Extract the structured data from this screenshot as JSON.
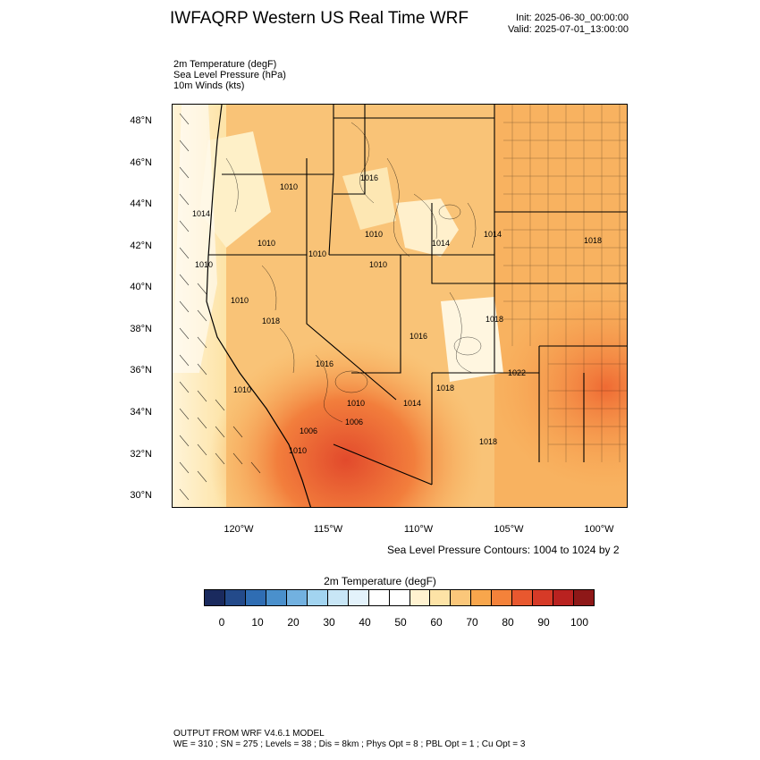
{
  "title": "IWFAQRP Western US Real Time WRF",
  "init": "Init: 2025-06-30_00:00:00",
  "valid": "Valid: 2025-07-01_13:00:00",
  "fields": [
    "2m Temperature   (degF)",
    "Sea Level Pressure   (hPa)",
    "10m Winds   (kts)"
  ],
  "lat_labels": [
    "48°N",
    "46°N",
    "44°N",
    "42°N",
    "40°N",
    "38°N",
    "36°N",
    "34°N",
    "32°N",
    "30°N"
  ],
  "lon_labels": [
    "120°W",
    "115°W",
    "110°W",
    "105°W",
    "100°W"
  ],
  "contour_note": "Sea Level Pressure Contours: 1004 to 1024 by 2",
  "colorbar": {
    "title": "2m Temperature  (degF)",
    "colors": [
      "#1a2a5e",
      "#234a8a",
      "#2f6db3",
      "#4a90cc",
      "#72b1e0",
      "#a2d4f0",
      "#c8e6f6",
      "#e3f2fb",
      "#ffffff",
      "#ffffff",
      "#fff2d0",
      "#fde3a6",
      "#fbc77a",
      "#f8a64c",
      "#f4823a",
      "#e8582f",
      "#d63a27",
      "#b92220",
      "#8e1818"
    ],
    "ticks": [
      "0",
      "10",
      "20",
      "30",
      "40",
      "50",
      "60",
      "70",
      "80",
      "90",
      "100"
    ]
  },
  "pressure_labels": [
    "1010",
    "1016",
    "1014",
    "1010",
    "1010",
    "1010",
    "1010",
    "1014",
    "1014",
    "1018",
    "1010",
    "1010",
    "1018",
    "1018",
    "1022",
    "1010",
    "1010",
    "1014",
    "1016",
    "1018",
    "1006",
    "1010",
    "1018",
    "1016",
    "1006"
  ],
  "footer": [
    "OUTPUT FROM WRF V4.6.1 MODEL",
    "WE = 310 ; SN = 275 ; Levels = 38 ; Dis = 8km ; Phys Opt = 8 ; PBL Opt = 1 ; Cu Opt = 3"
  ]
}
